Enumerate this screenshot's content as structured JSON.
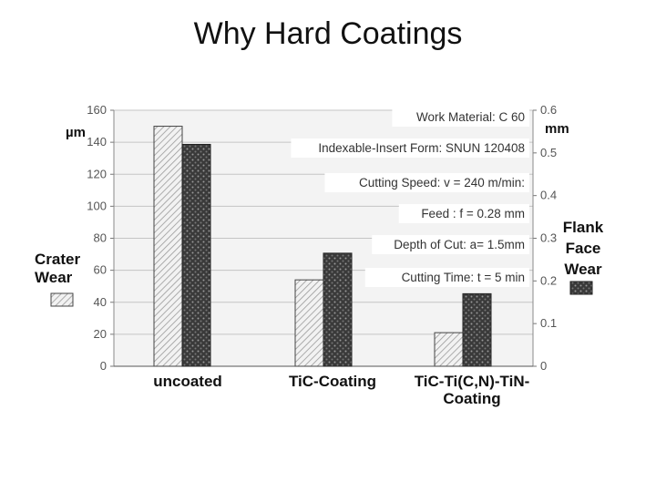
{
  "title": "Why Hard Coatings",
  "chart_data": {
    "type": "bar",
    "categories": [
      "uncoated",
      "TiC-Coating",
      "TiC-Ti(C,N)-TiN-Coating"
    ],
    "series": [
      {
        "name": "Crater Wear",
        "unit": "µm",
        "axis": "left",
        "values": [
          150,
          54,
          21
        ]
      },
      {
        "name": "Flank Face Wear",
        "unit": "mm",
        "axis": "right",
        "values": [
          0.52,
          0.265,
          0.17
        ]
      }
    ],
    "left_axis": {
      "label": "µm",
      "ylim": [
        0,
        160
      ],
      "ticks": [
        "0",
        "20",
        "40",
        "60",
        "80",
        "100",
        "120",
        "140",
        "160"
      ]
    },
    "right_axis": {
      "label": "mm",
      "ylim": [
        0,
        0.6
      ],
      "ticks": [
        "0",
        "0.1",
        "0.2",
        "0.3",
        "0.4",
        "0.5",
        "0.6"
      ]
    },
    "legend": {
      "left": [
        "Crater",
        "Wear"
      ],
      "right": [
        "Flank",
        "Face",
        "Wear"
      ]
    },
    "annotations": [
      "Work Material: C 60",
      "Indexable-Insert Form: SNUN 120408",
      "Cutting Speed: v = 240 m/min:",
      "Feed : f = 0.28 mm",
      "Depth of Cut: a= 1.5mm",
      "Cutting Time: t = 5 min"
    ],
    "category_labels": [
      [
        "uncoated"
      ],
      [
        "TiC-Coating"
      ],
      [
        "TiC-Ti(C,N)-TiN-",
        "Coating"
      ]
    ],
    "grid": true
  }
}
